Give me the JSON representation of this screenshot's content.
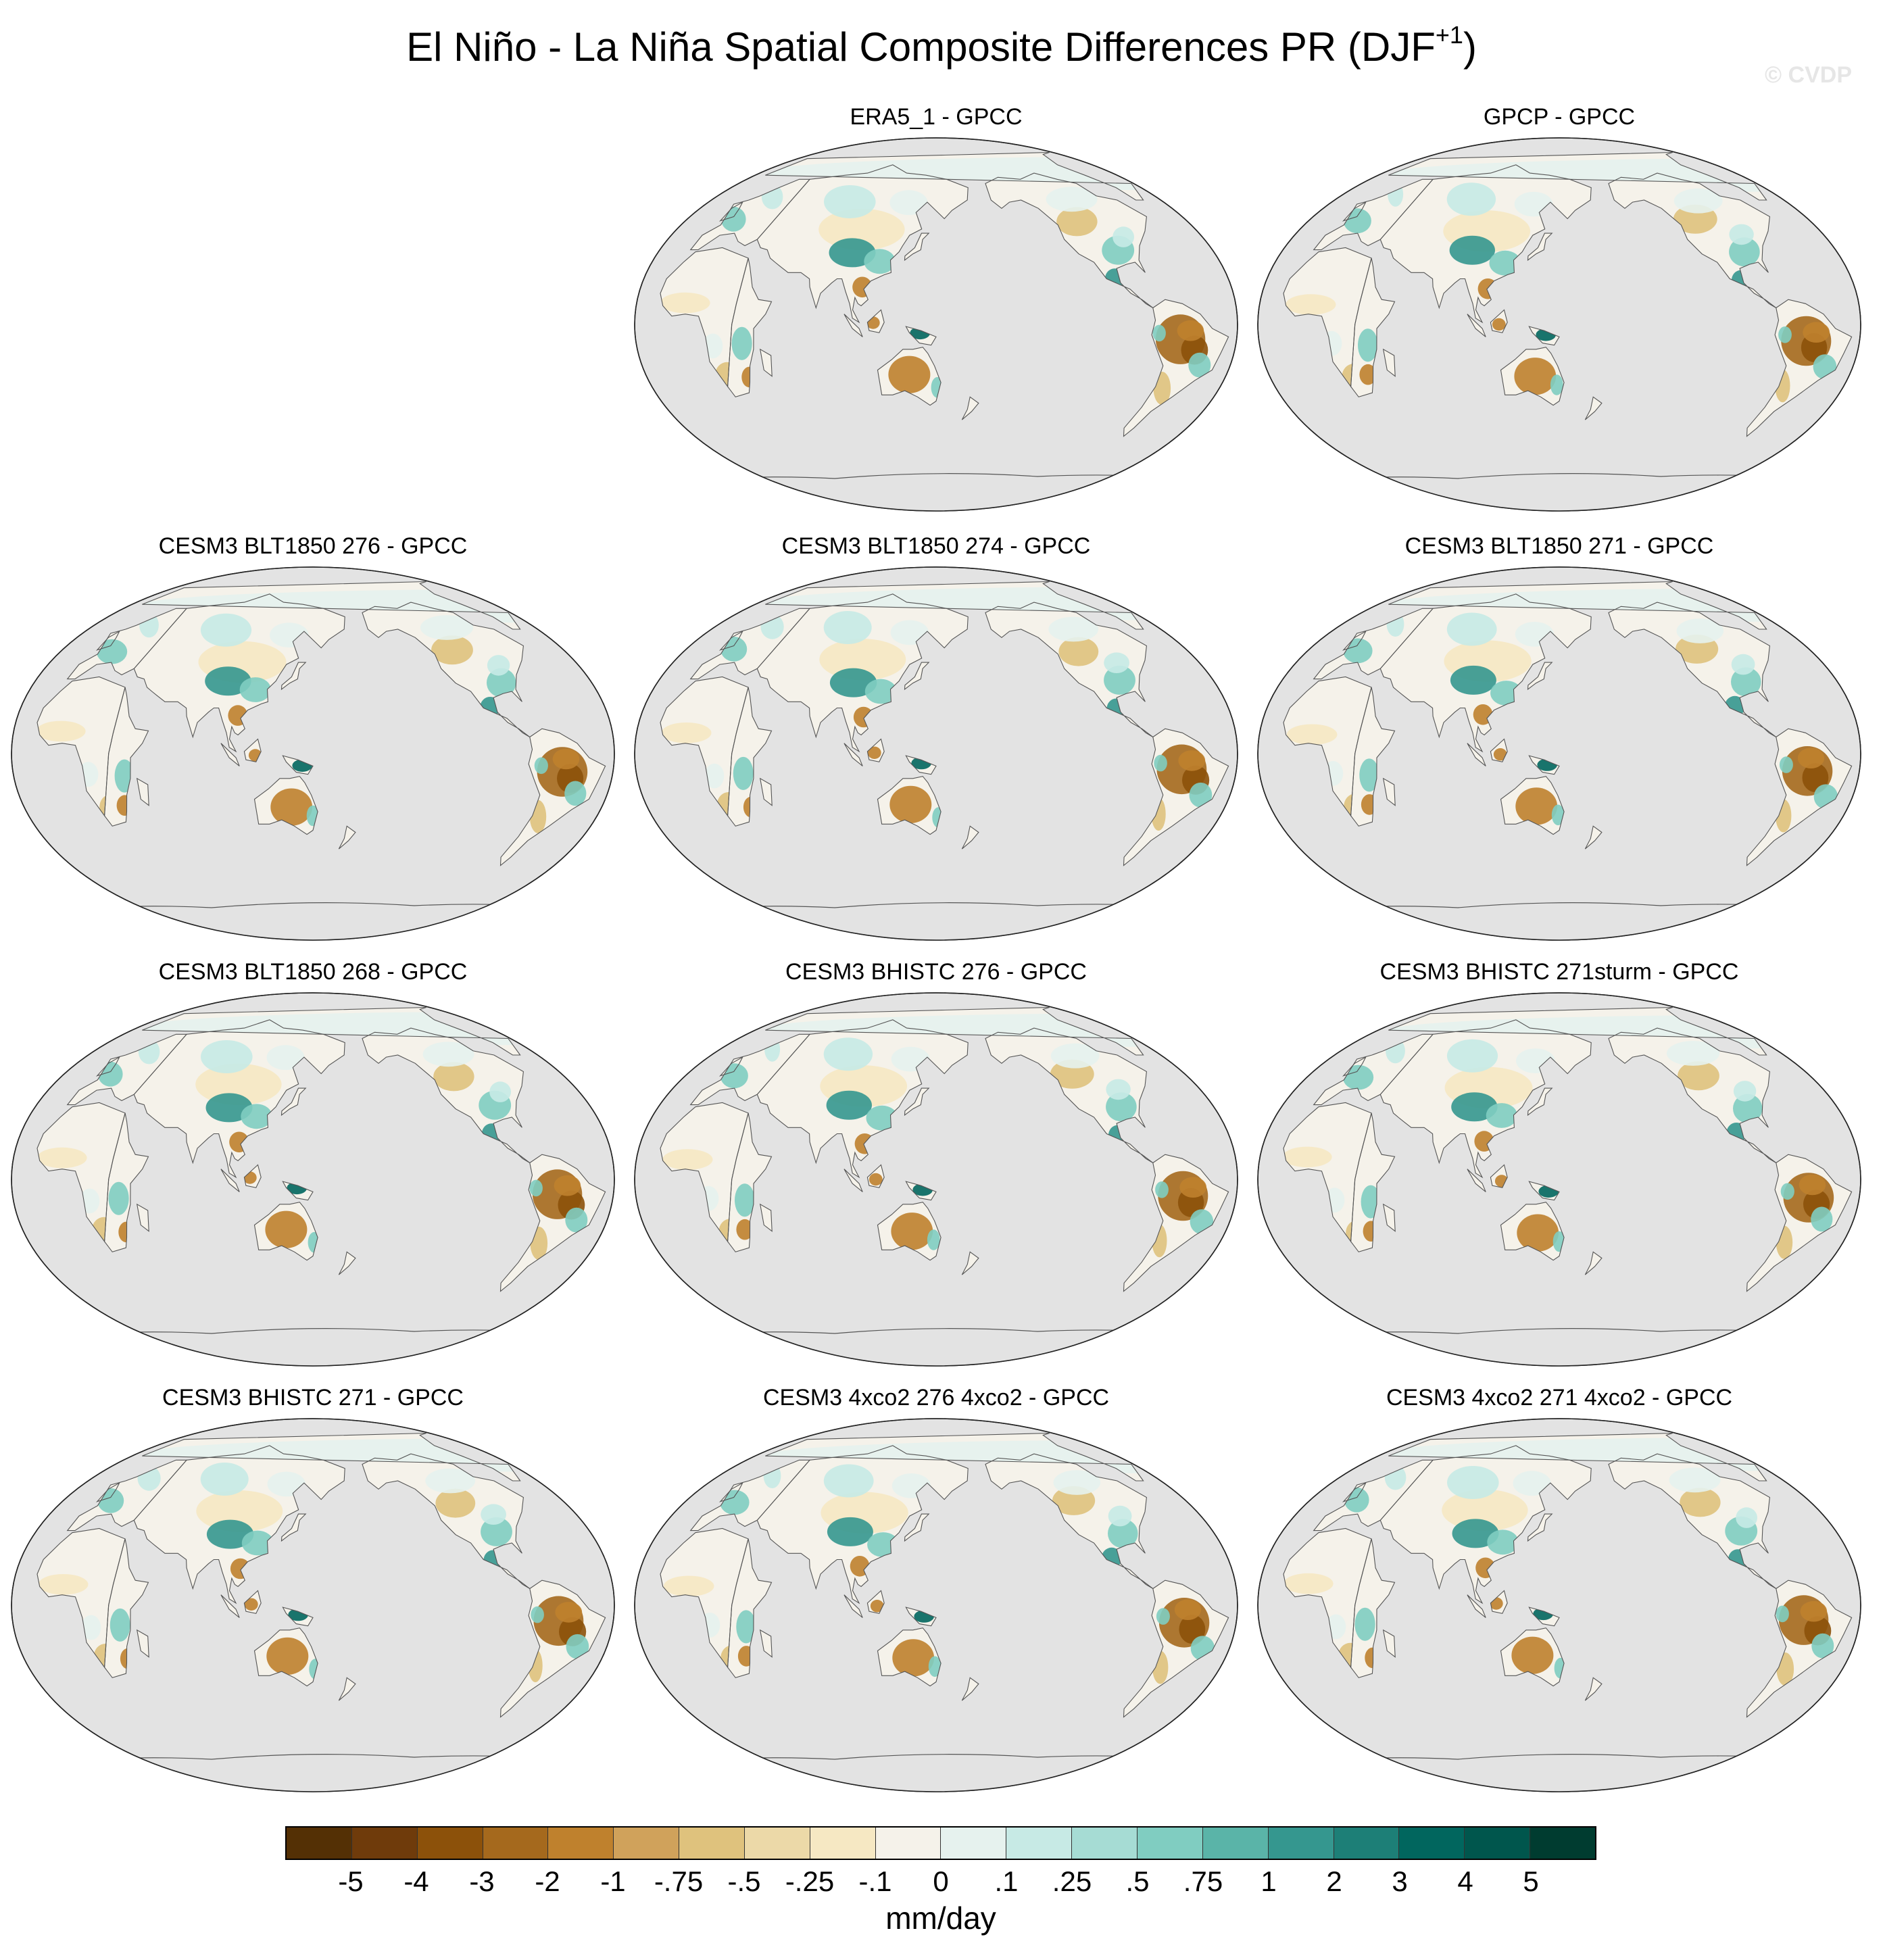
{
  "title": {
    "main": "El Niño - La Niña Spatial Composite Differences PR (DJF",
    "superscript": "+1",
    "close": ")"
  },
  "watermark": "© CVDP",
  "panels": [
    {
      "title": "ERA5_1 - GPCC"
    },
    {
      "title": "GPCP - GPCC"
    },
    {
      "title": "CESM3 BLT1850 276 - GPCC"
    },
    {
      "title": "CESM3 BLT1850 274 - GPCC"
    },
    {
      "title": "CESM3 BLT1850 271 - GPCC"
    },
    {
      "title": "CESM3 BLT1850 268 - GPCC"
    },
    {
      "title": "CESM3 BHISTC 276 - GPCC"
    },
    {
      "title": "CESM3 BHISTC 271sturm - GPCC"
    },
    {
      "title": "CESM3 BHISTC 271 - GPCC"
    },
    {
      "title": "CESM3 4xco2 276 4xco2 - GPCC"
    },
    {
      "title": "CESM3 4xco2 271 4xco2 - GPCC"
    }
  ],
  "colorbar": {
    "units": "mm/day",
    "labels": [
      "-5",
      "-4",
      "-3",
      "-2",
      "-1",
      "-.75",
      "-.5",
      "-.25",
      "-.1",
      "0",
      ".1",
      ".25",
      ".5",
      ".75",
      "1",
      "2",
      "3",
      "4",
      "5"
    ],
    "colors": [
      "#543005",
      "#6f3b0b",
      "#8c510a",
      "#a5691d",
      "#bf812d",
      "#d0a25b",
      "#dfc27d",
      "#ecd9a8",
      "#f6e8c3",
      "#f5f2ea",
      "#e6f2ee",
      "#c7eae5",
      "#a6dcd4",
      "#80cdc1",
      "#5ab4a8",
      "#35978f",
      "#1d7f77",
      "#01665e",
      "#00564d",
      "#003c30"
    ]
  }
}
